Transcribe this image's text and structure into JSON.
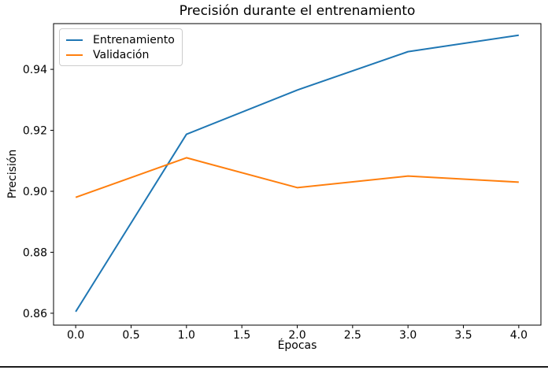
{
  "chart_data": {
    "type": "line",
    "title": "Precisión durante el entrenamiento",
    "xlabel": "Épocas",
    "ylabel": "Precisión",
    "x": [
      0,
      1,
      2,
      3,
      4
    ],
    "series": [
      {
        "name": "Entrenamiento",
        "color": "#1f77b4",
        "values": [
          0.8605,
          0.9187,
          0.9332,
          0.9458,
          0.9512
        ]
      },
      {
        "name": "Validación",
        "color": "#ff7f0e",
        "values": [
          0.898,
          0.911,
          0.9012,
          0.905,
          0.903
        ]
      }
    ],
    "xlim": [
      -0.2,
      4.2
    ],
    "ylim": [
      0.8561,
      0.955
    ],
    "x_ticks": [
      0.0,
      0.5,
      1.0,
      1.5,
      2.0,
      2.5,
      3.0,
      3.5,
      4.0
    ],
    "x_tick_labels": [
      "0.0",
      "0.5",
      "1.0",
      "1.5",
      "2.0",
      "2.5",
      "3.0",
      "3.5",
      "4.0"
    ],
    "y_ticks": [
      0.86,
      0.88,
      0.9,
      0.92,
      0.94
    ],
    "y_tick_labels": [
      "0.86",
      "0.88",
      "0.90",
      "0.92",
      "0.94"
    ],
    "grid": false,
    "legend_position": "upper left",
    "line_width": 2,
    "spine_color": "#000000"
  }
}
